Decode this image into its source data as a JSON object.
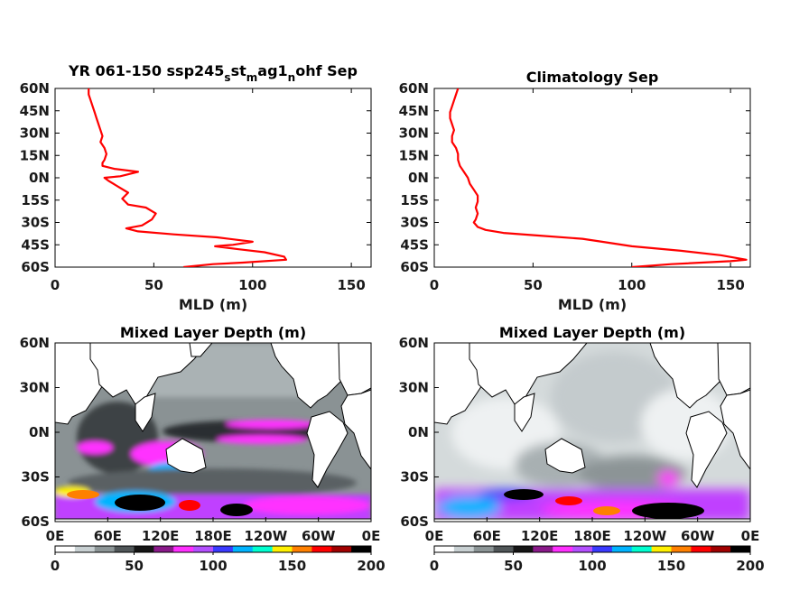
{
  "chart_data": [
    {
      "type": "line",
      "title": "YR 061-150 ssp245",
      "title_parts": [
        "YR 061-150 ssp245",
        "s",
        "st",
        "m",
        "ag1",
        "n",
        "ohf Sep"
      ],
      "xlabel": "MLD (m)",
      "xlim": [
        0,
        160
      ],
      "xticks": [
        "0",
        "50",
        "100",
        "150"
      ],
      "yticks": [
        "60N",
        "45N",
        "30N",
        "15N",
        "0N",
        "15S",
        "30S",
        "45S",
        "60S"
      ],
      "ylim": [
        -60,
        60
      ],
      "series": [
        {
          "color": "#ff0000",
          "x": [
            17,
            17,
            18,
            19,
            20,
            21,
            22,
            23,
            24,
            23,
            25,
            26,
            25,
            24,
            24,
            30,
            42,
            33,
            25,
            27,
            32,
            37,
            34,
            37,
            46,
            51,
            49,
            44,
            36,
            42,
            60,
            82,
            100,
            90,
            81,
            93,
            106,
            116,
            117,
            95,
            80,
            65
          ],
          "y": [
            60,
            56,
            52,
            48,
            44,
            40,
            36,
            32,
            28,
            24,
            20,
            16,
            12,
            10,
            8,
            6,
            4,
            1,
            0,
            -2,
            -6,
            -10,
            -14,
            -18,
            -20,
            -24,
            -28,
            -32,
            -34,
            -36,
            -38,
            -40,
            -43,
            -45,
            -46,
            -48,
            -50,
            -53,
            -55,
            -57,
            -58,
            -60
          ]
        }
      ]
    },
    {
      "type": "line",
      "title": "Climatology Sep",
      "xlabel": "MLD (m)",
      "xlim": [
        0,
        160
      ],
      "xticks": [
        "0",
        "50",
        "100",
        "150"
      ],
      "yticks": [
        "60N",
        "45N",
        "30N",
        "15N",
        "0N",
        "15S",
        "30S",
        "45S",
        "60S"
      ],
      "ylim": [
        -60,
        60
      ],
      "series": [
        {
          "color": "#ff0000",
          "x": [
            12,
            11,
            10,
            9,
            8,
            8,
            9,
            10,
            9,
            9,
            11,
            12,
            12,
            13,
            15,
            17,
            18,
            20,
            22,
            22,
            21,
            22,
            21,
            20,
            22,
            26,
            35,
            55,
            75,
            85,
            100,
            125,
            145,
            158,
            150,
            120,
            100
          ],
          "y": [
            60,
            56,
            52,
            48,
            44,
            40,
            36,
            32,
            28,
            24,
            20,
            16,
            12,
            8,
            4,
            0,
            -4,
            -8,
            -12,
            -16,
            -20,
            -24,
            -28,
            -30,
            -33,
            -35,
            -37,
            -39,
            -41,
            -43,
            -46,
            -49,
            -52,
            -55,
            -56,
            -58,
            -60
          ]
        }
      ]
    },
    {
      "type": "heatmap",
      "title": "Mixed Layer Depth (m)",
      "xticks": [
        "0E",
        "60E",
        "120E",
        "180E",
        "120W",
        "60W",
        "0E"
      ],
      "yticks": [
        "60N",
        "30N",
        "0N",
        "30S",
        "60S"
      ],
      "colorbar": {
        "ticks": [
          "0",
          "50",
          "100",
          "150",
          "200"
        ],
        "range": [
          0,
          200
        ],
        "colors": [
          "#ffffff",
          "#c8d0d2",
          "#8c9596",
          "#505658",
          "#151515",
          "#8a1a8a",
          "#ff30ff",
          "#b450ff",
          "#3a3aff",
          "#00b4ff",
          "#00ffd0",
          "#fff000",
          "#ff8000",
          "#ff0000",
          "#a00000",
          "#000000"
        ]
      }
    },
    {
      "type": "heatmap",
      "title": "Mixed Layer Depth (m)",
      "xticks": [
        "0E",
        "60E",
        "120E",
        "180E",
        "120W",
        "60W",
        "0E"
      ],
      "yticks": [
        "60N",
        "30N",
        "0N",
        "30S",
        "60S"
      ],
      "colorbar": {
        "ticks": [
          "0",
          "50",
          "100",
          "150",
          "200"
        ],
        "range": [
          0,
          200
        ],
        "colors": [
          "#ffffff",
          "#c8d0d2",
          "#8c9596",
          "#505658",
          "#151515",
          "#8a1a8a",
          "#ff30ff",
          "#b450ff",
          "#3a3aff",
          "#00b4ff",
          "#00ffd0",
          "#fff000",
          "#ff8000",
          "#ff0000",
          "#a00000",
          "#000000"
        ]
      }
    }
  ]
}
